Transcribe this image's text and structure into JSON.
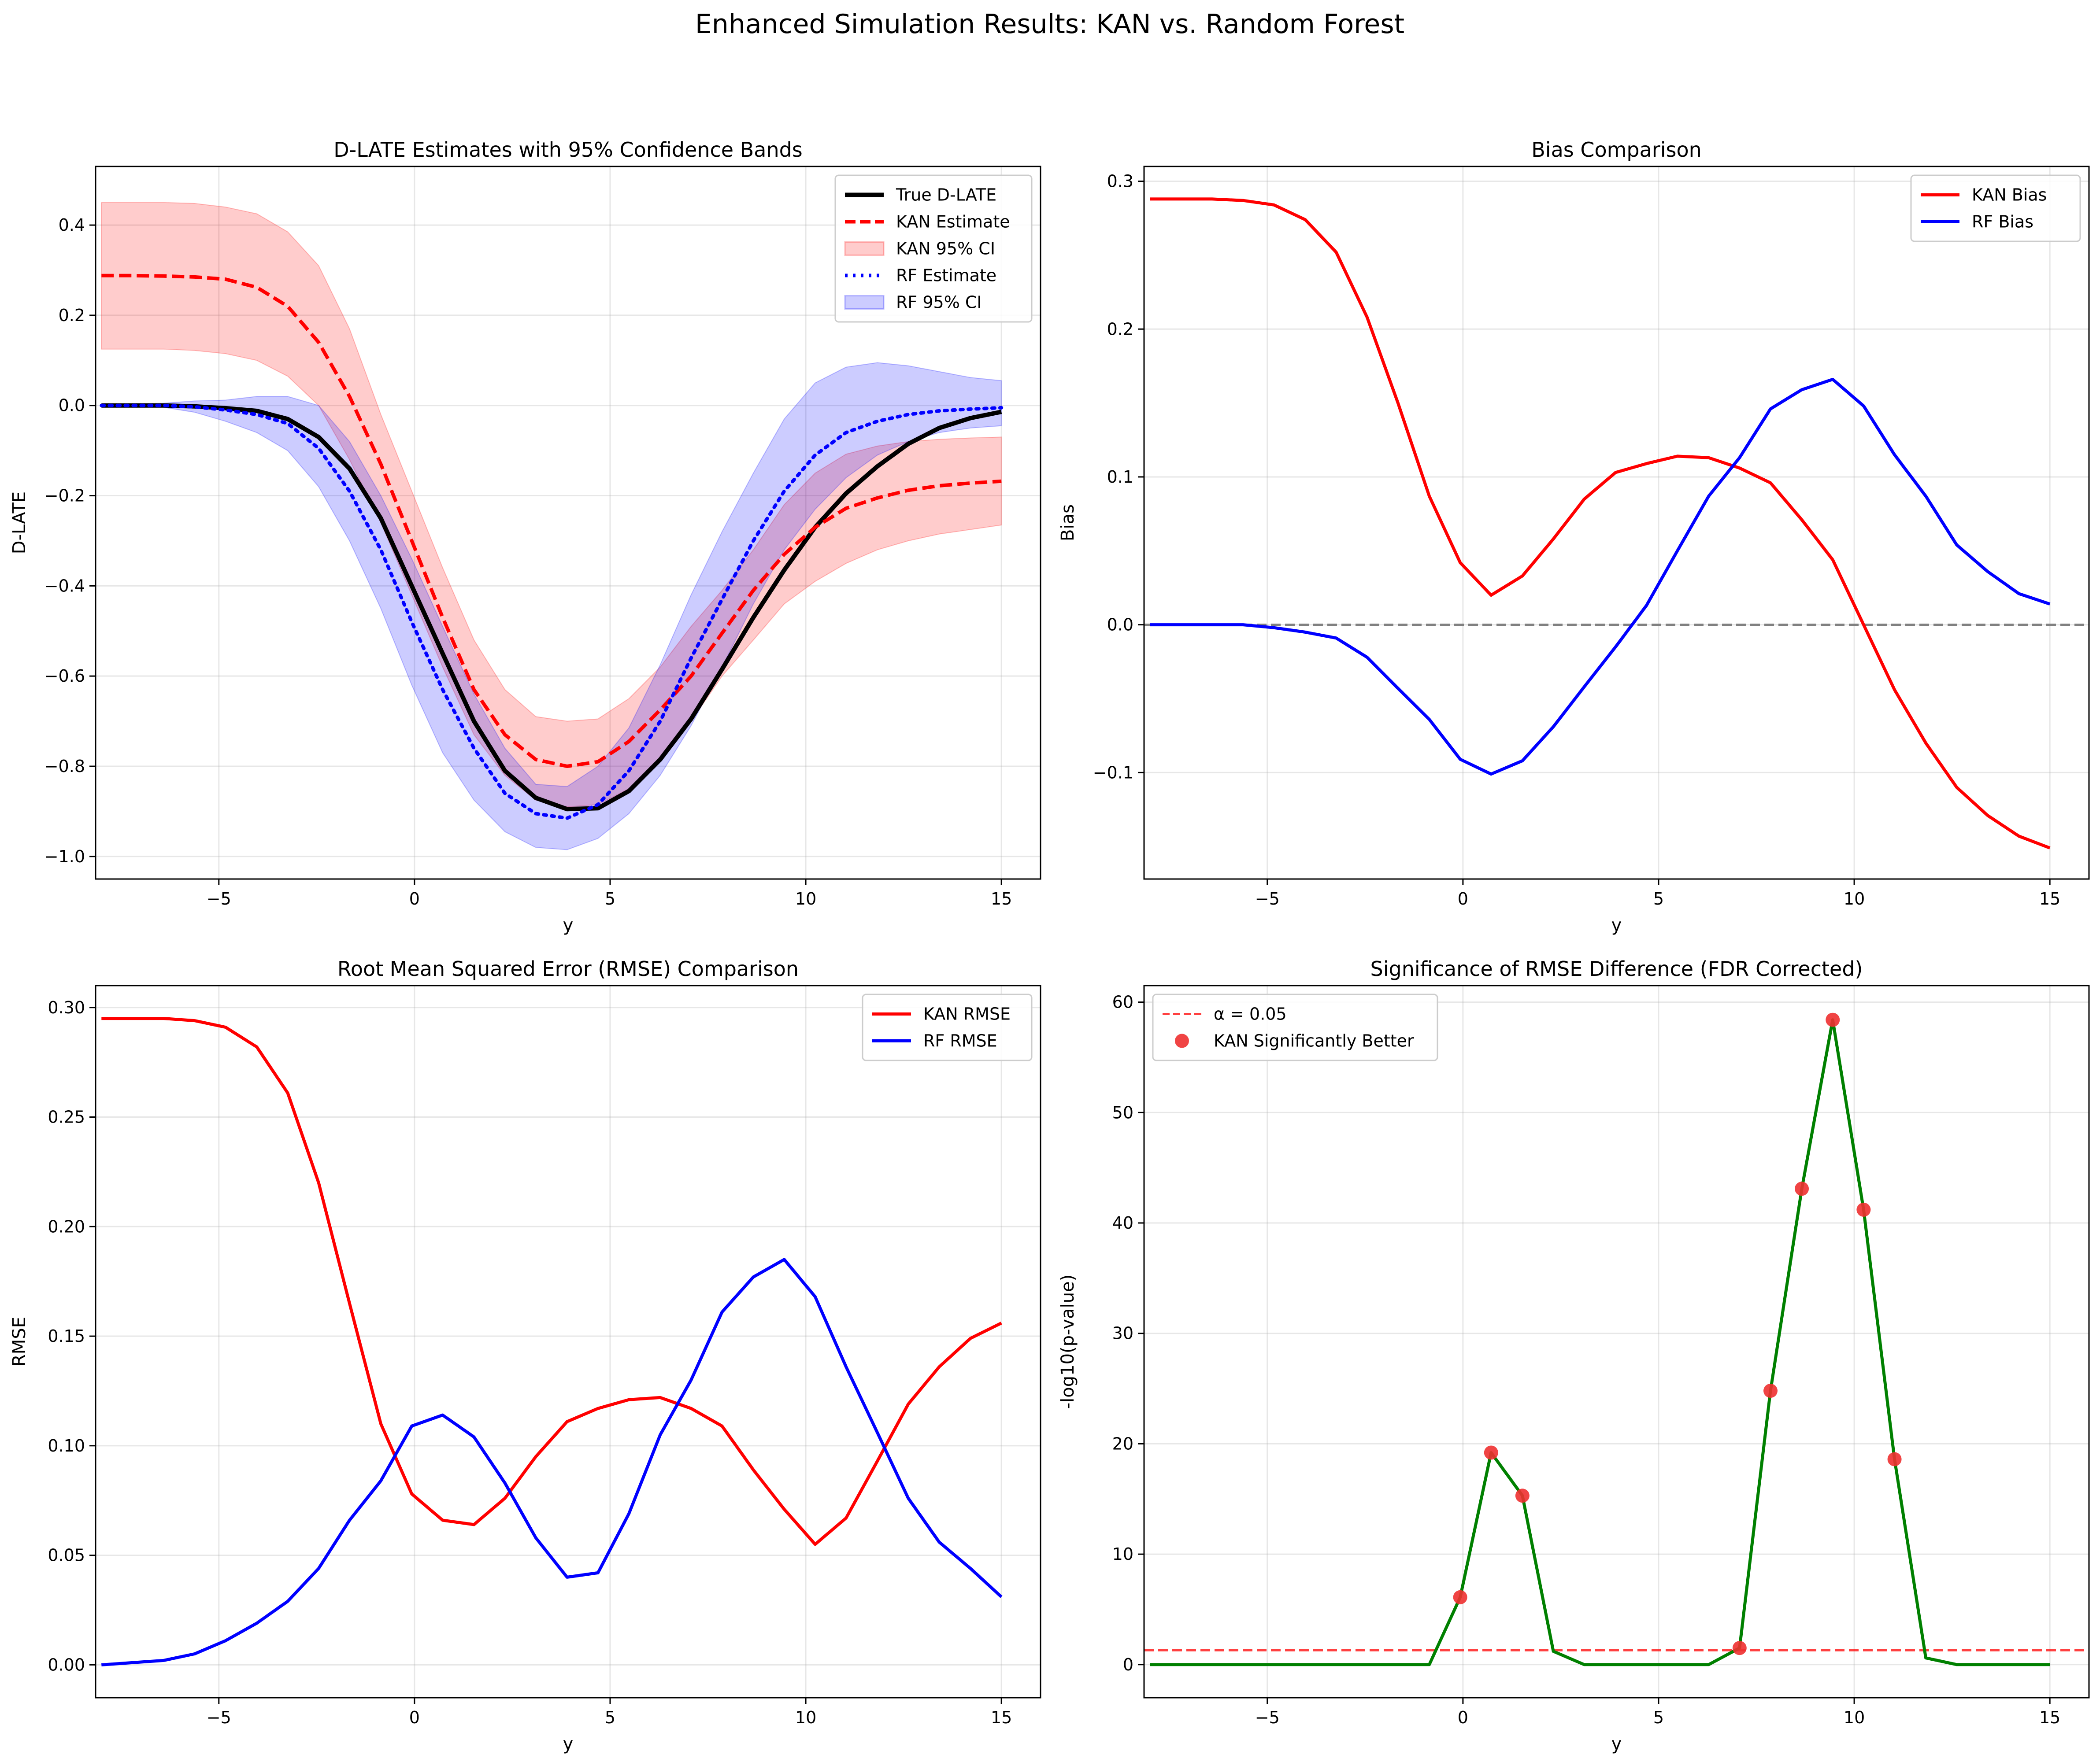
{
  "suptitle": "Enhanced Simulation Results: KAN vs. Random Forest",
  "colors": {
    "true": "#000000",
    "kan": "#ff0000",
    "rf": "#0000ff",
    "kan_band": "#ff0000",
    "rf_band": "#0000ff",
    "green": "#008000",
    "zero": "#808080",
    "alpha": "#ff0000",
    "points": "#ee3030"
  },
  "chart_data": [
    {
      "type": "line",
      "title": "D-LATE Estimates with 95% Confidence Bands",
      "xlabel": "y",
      "ylabel": "D-LATE",
      "xlim": [
        -8.15,
        16.0
      ],
      "ylim": [
        -1.05,
        0.53
      ],
      "xticks": [
        -5,
        0,
        5,
        10,
        15
      ],
      "xtick_labels": [
        "−5",
        "0",
        "5",
        "10",
        "15"
      ],
      "yticks": [
        -1.0,
        -0.8,
        -0.6,
        -0.4,
        -0.2,
        0.0,
        0.2,
        0.4
      ],
      "ytick_labels": [
        "−1.0",
        "−0.8",
        "−0.6",
        "−0.4",
        "−0.2",
        "0.0",
        "0.2",
        "0.4"
      ],
      "grid": true,
      "legend_position": "top-right",
      "x": [
        -8.0,
        -7.21,
        -6.41,
        -5.62,
        -4.83,
        -4.03,
        -3.24,
        -2.45,
        -1.66,
        -0.86,
        -0.07,
        0.72,
        1.52,
        2.31,
        3.1,
        3.9,
        4.69,
        5.48,
        6.28,
        7.07,
        7.86,
        8.66,
        9.45,
        10.24,
        11.03,
        11.83,
        12.62,
        13.41,
        14.21,
        15.0
      ],
      "series": [
        {
          "name": "True D-LATE",
          "style": "solid-thick",
          "values": [
            0.0,
            0.0,
            0.0,
            -0.002,
            -0.006,
            -0.012,
            -0.03,
            -0.07,
            -0.14,
            -0.25,
            -0.4,
            -0.55,
            -0.7,
            -0.81,
            -0.87,
            -0.895,
            -0.893,
            -0.855,
            -0.785,
            -0.695,
            -0.585,
            -0.47,
            -0.365,
            -0.27,
            -0.195,
            -0.135,
            -0.085,
            -0.05,
            -0.028,
            -0.014
          ]
        },
        {
          "name": "KAN Estimate",
          "style": "dashed",
          "values": [
            0.288,
            0.288,
            0.287,
            0.285,
            0.28,
            0.262,
            0.22,
            0.14,
            0.02,
            -0.13,
            -0.3,
            -0.47,
            -0.63,
            -0.73,
            -0.785,
            -0.8,
            -0.79,
            -0.745,
            -0.675,
            -0.6,
            -0.505,
            -0.41,
            -0.33,
            -0.27,
            -0.228,
            -0.205,
            -0.188,
            -0.178,
            -0.172,
            -0.168
          ]
        },
        {
          "name": "RF Estimate",
          "style": "dotted",
          "values": [
            0.0,
            0.0,
            0.0,
            -0.003,
            -0.01,
            -0.02,
            -0.04,
            -0.095,
            -0.19,
            -0.32,
            -0.48,
            -0.63,
            -0.76,
            -0.86,
            -0.905,
            -0.915,
            -0.885,
            -0.81,
            -0.7,
            -0.56,
            -0.43,
            -0.3,
            -0.19,
            -0.11,
            -0.06,
            -0.035,
            -0.02,
            -0.012,
            -0.008,
            -0.005
          ]
        }
      ],
      "bands": [
        {
          "name": "KAN 95% CI",
          "lower": [
            0.125,
            0.125,
            0.125,
            0.122,
            0.115,
            0.1,
            0.065,
            0.0,
            -0.12,
            -0.26,
            -0.42,
            -0.58,
            -0.73,
            -0.82,
            -0.875,
            -0.89,
            -0.885,
            -0.85,
            -0.78,
            -0.7,
            -0.6,
            -0.52,
            -0.44,
            -0.39,
            -0.35,
            -0.32,
            -0.3,
            -0.285,
            -0.275,
            -0.265
          ],
          "upper": [
            0.45,
            0.45,
            0.45,
            0.448,
            0.44,
            0.425,
            0.385,
            0.31,
            0.17,
            -0.02,
            -0.19,
            -0.36,
            -0.52,
            -0.63,
            -0.69,
            -0.7,
            -0.695,
            -0.65,
            -0.58,
            -0.49,
            -0.41,
            -0.32,
            -0.22,
            -0.15,
            -0.108,
            -0.09,
            -0.08,
            -0.075,
            -0.072,
            -0.07
          ]
        },
        {
          "name": "RF 95% CI",
          "lower": [
            -0.003,
            -0.003,
            -0.004,
            -0.015,
            -0.035,
            -0.06,
            -0.1,
            -0.18,
            -0.3,
            -0.45,
            -0.62,
            -0.77,
            -0.875,
            -0.945,
            -0.98,
            -0.985,
            -0.96,
            -0.905,
            -0.82,
            -0.71,
            -0.58,
            -0.44,
            -0.32,
            -0.23,
            -0.16,
            -0.11,
            -0.08,
            -0.06,
            -0.05,
            -0.045
          ],
          "upper": [
            0.003,
            0.004,
            0.005,
            0.01,
            0.012,
            0.02,
            0.02,
            0.0,
            -0.08,
            -0.2,
            -0.34,
            -0.49,
            -0.64,
            -0.76,
            -0.84,
            -0.845,
            -0.8,
            -0.715,
            -0.575,
            -0.42,
            -0.28,
            -0.15,
            -0.03,
            0.05,
            0.085,
            0.095,
            0.088,
            0.075,
            0.062,
            0.055
          ]
        }
      ],
      "legend": [
        "True D-LATE",
        "KAN Estimate",
        "KAN 95% CI",
        "RF Estimate",
        "RF 95% CI"
      ]
    },
    {
      "type": "line",
      "title": "Bias Comparison",
      "xlabel": "y",
      "ylabel": "Bias",
      "xlim": [
        -8.15,
        16.0
      ],
      "ylim": [
        -0.172,
        0.31
      ],
      "xticks": [
        -5,
        0,
        5,
        10,
        15
      ],
      "xtick_labels": [
        "−5",
        "0",
        "5",
        "10",
        "15"
      ],
      "yticks": [
        -0.1,
        0.0,
        0.1,
        0.2,
        0.3
      ],
      "ytick_labels": [
        "−0.1",
        "0.0",
        "0.1",
        "0.2",
        "0.3"
      ],
      "grid": true,
      "legend_position": "top-right",
      "reference_line": {
        "y": 0.0,
        "style": "dashed"
      },
      "x": [
        -8.0,
        -7.21,
        -6.41,
        -5.62,
        -4.83,
        -4.03,
        -3.24,
        -2.45,
        -1.66,
        -0.86,
        -0.07,
        0.72,
        1.52,
        2.31,
        3.1,
        3.9,
        4.69,
        5.48,
        6.28,
        7.07,
        7.86,
        8.66,
        9.45,
        10.24,
        11.03,
        11.83,
        12.62,
        13.41,
        14.21,
        15.0
      ],
      "series": [
        {
          "name": "KAN Bias",
          "values": [
            0.288,
            0.288,
            0.288,
            0.287,
            0.284,
            0.274,
            0.252,
            0.208,
            0.15,
            0.087,
            0.042,
            0.02,
            0.033,
            0.058,
            0.085,
            0.103,
            0.109,
            0.114,
            0.113,
            0.106,
            0.096,
            0.071,
            0.044,
            0.0,
            -0.044,
            -0.08,
            -0.11,
            -0.129,
            -0.143,
            -0.151
          ]
        },
        {
          "name": "RF Bias",
          "values": [
            0.0,
            0.0,
            0.0,
            0.0,
            -0.002,
            -0.005,
            -0.009,
            -0.022,
            -0.043,
            -0.064,
            -0.091,
            -0.101,
            -0.092,
            -0.069,
            -0.042,
            -0.015,
            0.013,
            0.05,
            0.087,
            0.113,
            0.146,
            0.159,
            0.166,
            0.148,
            0.115,
            0.087,
            0.054,
            0.036,
            0.021,
            0.014
          ]
        }
      ],
      "legend": [
        "KAN Bias",
        "RF Bias"
      ]
    },
    {
      "type": "line",
      "title": "Root Mean Squared Error (RMSE) Comparison",
      "xlabel": "y",
      "ylabel": "RMSE",
      "xlim": [
        -8.15,
        16.0
      ],
      "ylim": [
        -0.015,
        0.31
      ],
      "xticks": [
        -5,
        0,
        5,
        10,
        15
      ],
      "xtick_labels": [
        "−5",
        "0",
        "5",
        "10",
        "15"
      ],
      "yticks": [
        0.0,
        0.05,
        0.1,
        0.15,
        0.2,
        0.25,
        0.3
      ],
      "ytick_labels": [
        "0.00",
        "0.05",
        "0.10",
        "0.15",
        "0.20",
        "0.25",
        "0.30"
      ],
      "grid": true,
      "legend_position": "top-right",
      "x": [
        -8.0,
        -7.21,
        -6.41,
        -5.62,
        -4.83,
        -4.03,
        -3.24,
        -2.45,
        -1.66,
        -0.86,
        -0.07,
        0.72,
        1.52,
        2.31,
        3.1,
        3.9,
        4.69,
        5.48,
        6.28,
        7.07,
        7.86,
        8.66,
        9.45,
        10.24,
        11.03,
        11.83,
        12.62,
        13.41,
        14.21,
        15.0
      ],
      "series": [
        {
          "name": "KAN RMSE",
          "values": [
            0.295,
            0.295,
            0.295,
            0.294,
            0.291,
            0.282,
            0.261,
            0.22,
            0.165,
            0.11,
            0.078,
            0.066,
            0.064,
            0.076,
            0.095,
            0.111,
            0.117,
            0.121,
            0.122,
            0.117,
            0.109,
            0.089,
            0.071,
            0.055,
            0.067,
            0.093,
            0.119,
            0.136,
            0.149,
            0.156
          ]
        },
        {
          "name": "RF RMSE",
          "values": [
            0.0,
            0.001,
            0.002,
            0.005,
            0.011,
            0.019,
            0.029,
            0.044,
            0.066,
            0.084,
            0.109,
            0.114,
            0.104,
            0.083,
            0.058,
            0.04,
            0.042,
            0.069,
            0.105,
            0.13,
            0.161,
            0.177,
            0.185,
            0.168,
            0.136,
            0.106,
            0.076,
            0.056,
            0.044,
            0.031
          ]
        }
      ],
      "legend": [
        "KAN RMSE",
        "RF RMSE"
      ]
    },
    {
      "type": "line",
      "title": "Significance of RMSE Difference (FDR Corrected)",
      "xlabel": "y",
      "ylabel": "-log10(p-value)",
      "xlim": [
        -8.15,
        16.0
      ],
      "ylim": [
        -3.0,
        61.5
      ],
      "xticks": [
        -5,
        0,
        5,
        10,
        15
      ],
      "xtick_labels": [
        "−5",
        "0",
        "5",
        "10",
        "15"
      ],
      "yticks": [
        0,
        10,
        20,
        30,
        40,
        50,
        60
      ],
      "ytick_labels": [
        "0",
        "10",
        "20",
        "30",
        "40",
        "50",
        "60"
      ],
      "grid": true,
      "legend_position": "top-left",
      "alpha_line": {
        "name": "α = 0.05",
        "y": 1.3,
        "style": "dashed"
      },
      "x": [
        -8.0,
        -7.21,
        -6.41,
        -5.62,
        -4.83,
        -4.03,
        -3.24,
        -2.45,
        -1.66,
        -0.86,
        -0.07,
        0.72,
        1.52,
        2.31,
        3.1,
        3.9,
        4.69,
        5.48,
        6.28,
        7.07,
        7.86,
        8.66,
        9.45,
        10.24,
        11.03,
        11.83,
        12.62,
        13.41,
        14.21,
        15.0
      ],
      "series": [
        {
          "name": "",
          "values": [
            0,
            0,
            0,
            0,
            0,
            0,
            0,
            0,
            0,
            0,
            6.1,
            19.2,
            15.3,
            1.2,
            0,
            0,
            0,
            0,
            0,
            1.5,
            24.8,
            43.1,
            58.4,
            41.2,
            18.6,
            0.6,
            0,
            0,
            0,
            0
          ]
        }
      ],
      "significant_points": {
        "name": "KAN Significantly Better",
        "x": [
          -0.07,
          0.72,
          1.52,
          7.07,
          7.86,
          8.66,
          9.45,
          10.24,
          11.03
        ],
        "y": [
          6.1,
          19.2,
          15.3,
          1.5,
          24.8,
          43.1,
          58.4,
          41.2,
          18.6
        ]
      },
      "legend": [
        "α = 0.05",
        "KAN Significantly Better"
      ]
    }
  ]
}
